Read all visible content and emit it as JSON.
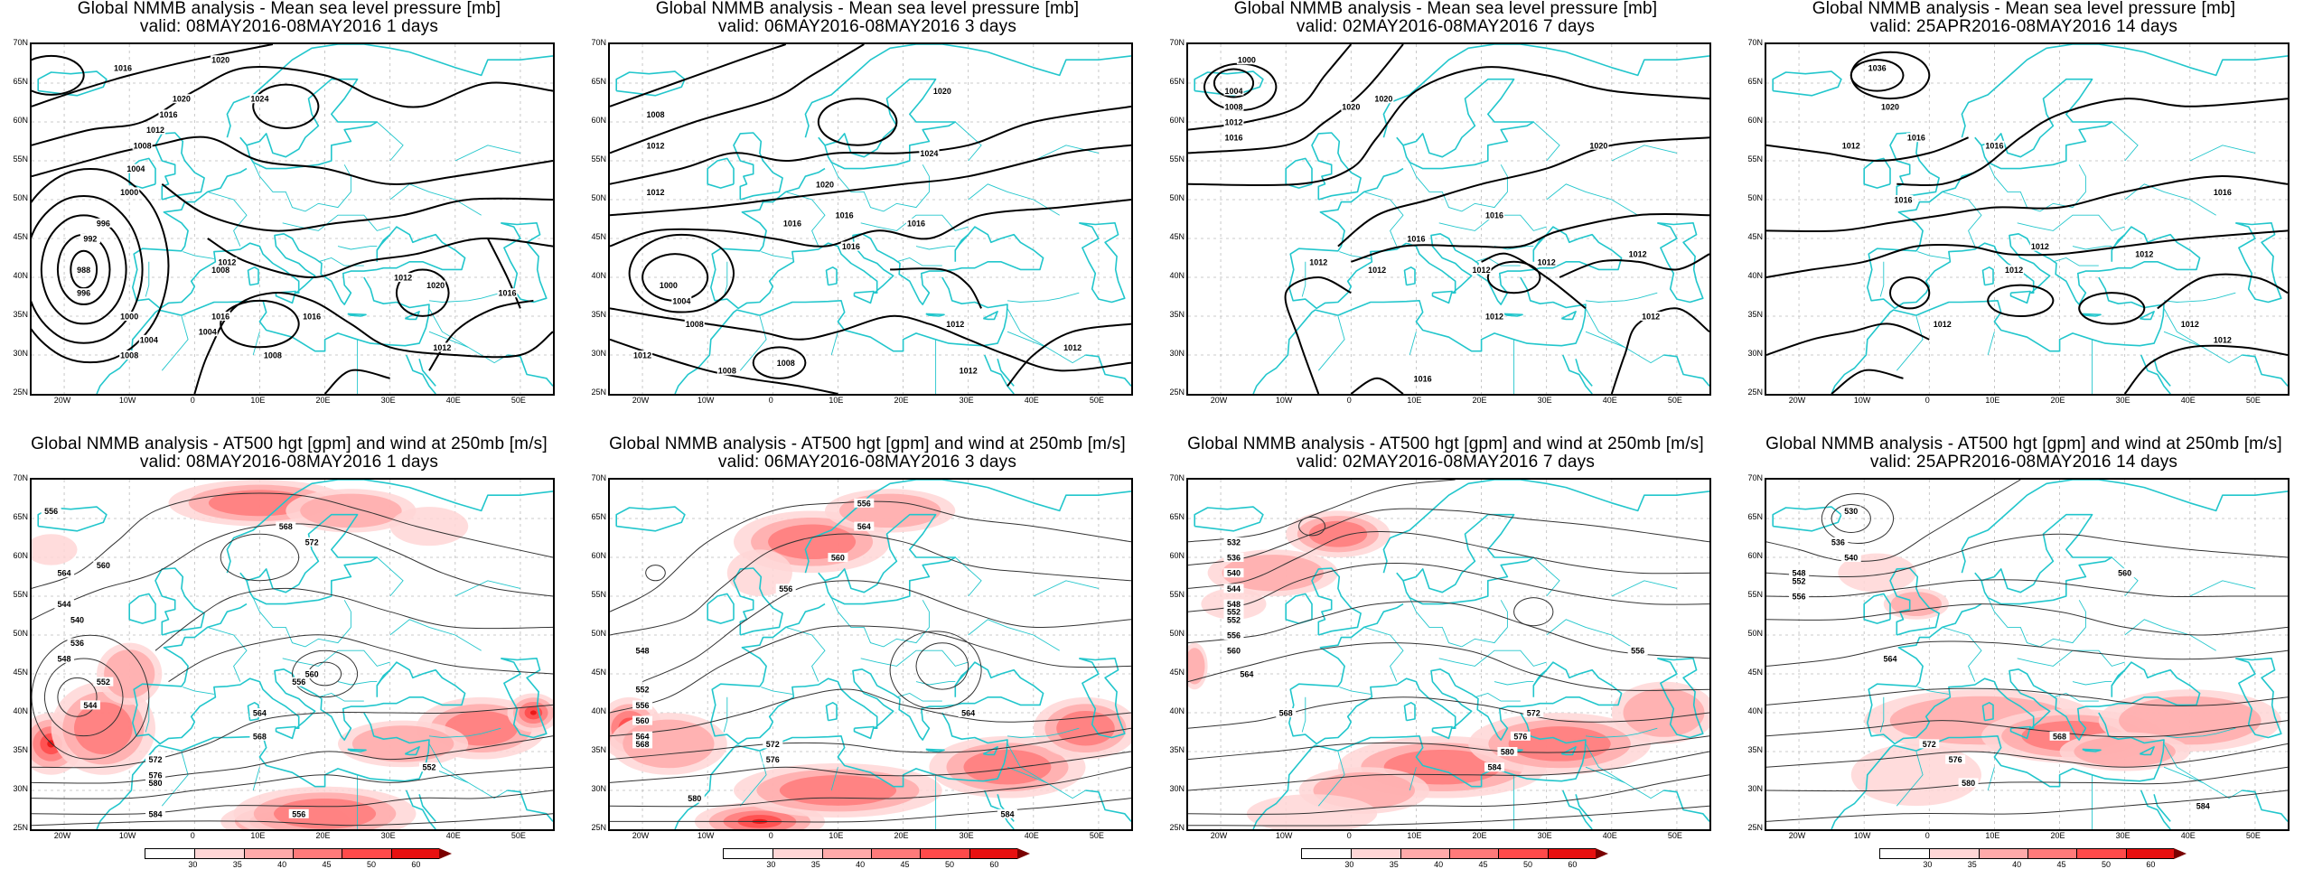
{
  "mslp_title": "Global NMMB analysis - Mean sea level pressure [mb]",
  "z500_title": "Global NMMB analysis - AT500 hgt [gpm] and wind at 250mb [m/s]",
  "periods": [
    {
      "valid": "valid: 08MAY2016-08MAY2016   1 days"
    },
    {
      "valid": "valid: 06MAY2016-08MAY2016   3 days"
    },
    {
      "valid": "valid: 02MAY2016-08MAY2016   7 days"
    },
    {
      "valid": "valid: 25APR2016-08MAY2016   14 days"
    }
  ],
  "lat_labels": [
    "70N",
    "65N",
    "60N",
    "55N",
    "50N",
    "45N",
    "40N",
    "35N",
    "30N",
    "25N"
  ],
  "lon_labels": [
    "20W",
    "10W",
    "0",
    "10E",
    "20E",
    "30E",
    "40E",
    "50E"
  ],
  "colorbar_labels": [
    "30",
    "35",
    "40",
    "45",
    "50",
    "60"
  ],
  "colors": {
    "coast": "#22c6cc",
    "isobar": "#000000",
    "contour": "#333333",
    "grid": "#bbbbbb",
    "wind_ramp": [
      "#ffffff",
      "#ffd6d6",
      "#ffaaaa",
      "#ff7a7a",
      "#ff4a4a",
      "#e81010",
      "#7a0000"
    ]
  },
  "mslp_panels": [
    {
      "labels": [
        "1016",
        "1020",
        "1024",
        "1020",
        "1016",
        "1012",
        "1008",
        "1004",
        "1000",
        "996",
        "992",
        "988",
        "996",
        "1000",
        "1004",
        "1008",
        "1012",
        "1008",
        "1016",
        "1016",
        "1012",
        "1020",
        "1016",
        "1012",
        "1008",
        "1004"
      ]
    },
    {
      "labels": [
        "1008",
        "1012",
        "1012",
        "1016",
        "1016",
        "1020",
        "1020",
        "1024",
        "1016",
        "1016",
        "1000",
        "1004",
        "1008",
        "1012",
        "1008",
        "1008",
        "1012",
        "1012",
        "1012"
      ]
    },
    {
      "labels": [
        "1000",
        "1004",
        "1008",
        "1012",
        "1016",
        "1020",
        "1020",
        "1020",
        "1016",
        "1016",
        "1012",
        "1012",
        "1012",
        "1012",
        "1012",
        "1012",
        "1012",
        "1016"
      ]
    },
    {
      "labels": [
        "1036",
        "1020",
        "1016",
        "1012",
        "1016",
        "1016",
        "1016",
        "1012",
        "1012",
        "1012",
        "1012",
        "1012",
        "1012"
      ]
    }
  ],
  "z500_panels": [
    {
      "labels": [
        "556",
        "560",
        "564",
        "568",
        "572",
        "544",
        "540",
        "536",
        "548",
        "552",
        "544",
        "556",
        "560",
        "564",
        "568",
        "572",
        "576",
        "580",
        "584",
        "556",
        "552"
      ]
    },
    {
      "labels": [
        "556",
        "564",
        "560",
        "556",
        "548",
        "552",
        "556",
        "560",
        "564",
        "568",
        "572",
        "576",
        "580",
        "584",
        "564"
      ]
    },
    {
      "labels": [
        "532",
        "536",
        "540",
        "544",
        "548",
        "552",
        "556",
        "560",
        "564",
        "568",
        "572",
        "576",
        "580",
        "584",
        "552",
        "556"
      ]
    },
    {
      "labels": [
        "530",
        "536",
        "540",
        "548",
        "552",
        "556",
        "560",
        "564",
        "572",
        "576",
        "580",
        "584",
        "568"
      ]
    }
  ]
}
